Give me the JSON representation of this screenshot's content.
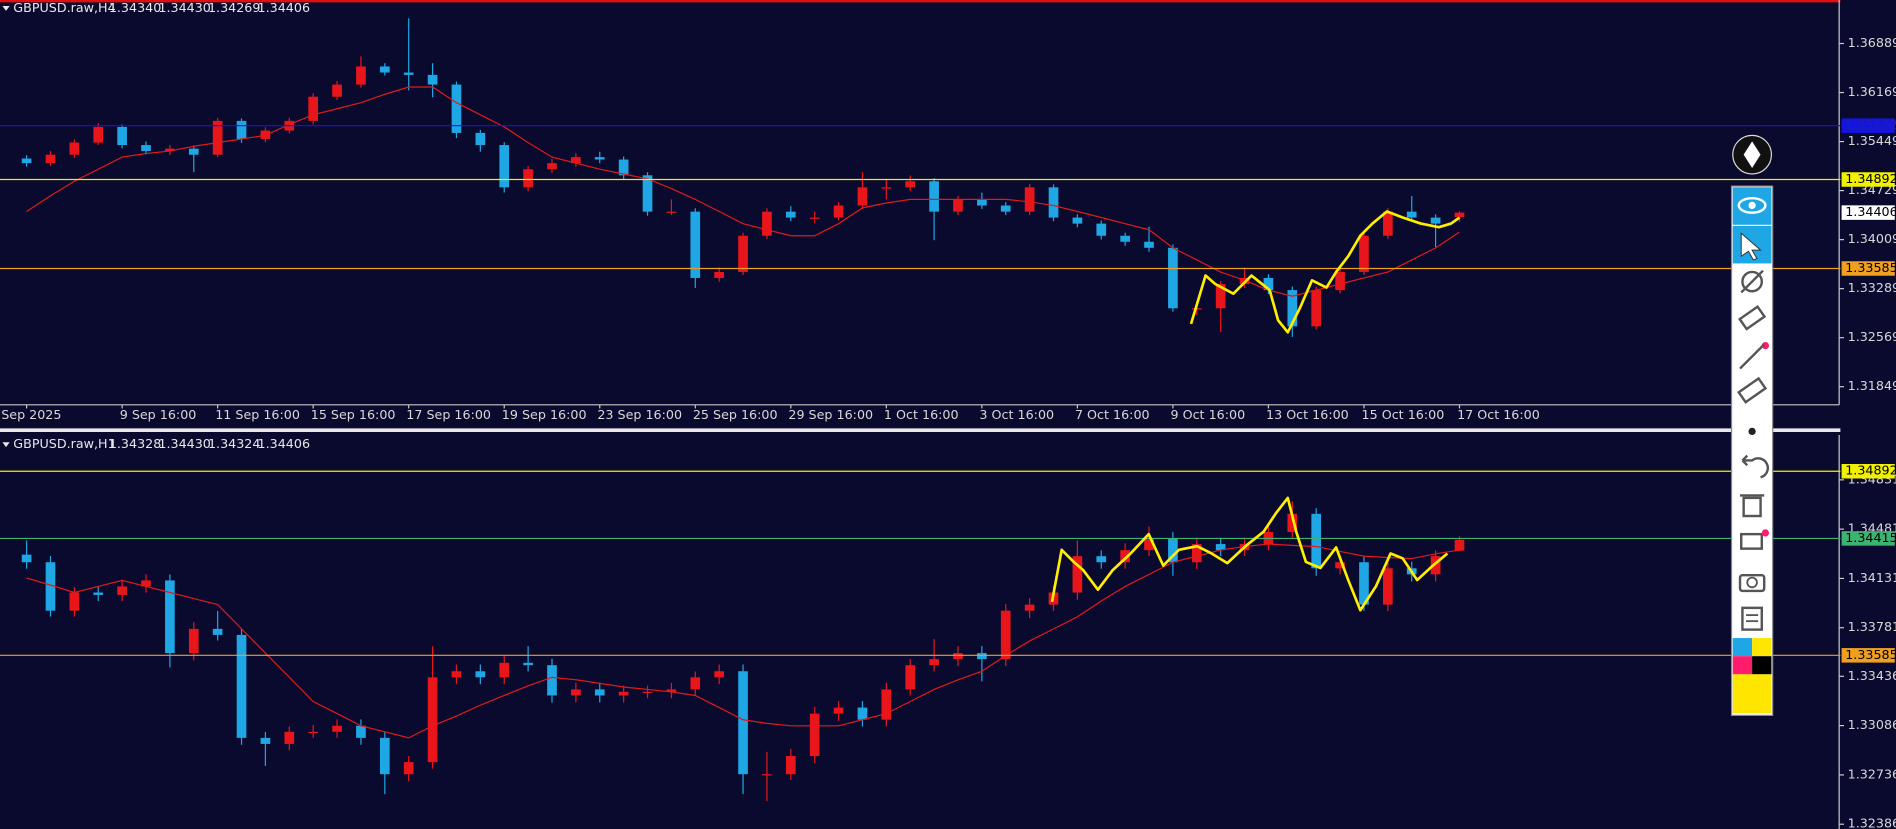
{
  "chart_data": [
    {
      "type": "candlestick",
      "title": "GBPUSD.raw,H4",
      "ohlc_labels": [
        "1.34340",
        "1.34430",
        "1.34269",
        "1.34406"
      ],
      "up_color": "#e8161a",
      "down_color": "#1ea7e4",
      "ma_color": "#e01a1a",
      "ylim": [
        1.31583,
        1.37528
      ],
      "yticks": [
        1.31849,
        1.32569,
        1.33289,
        1.34009,
        1.34729,
        1.35449,
        1.36169,
        1.36889
      ],
      "categories": [
        "Sep 2025",
        null,
        null,
        null,
        "9 Sep 16:00",
        null,
        null,
        null,
        "11 Sep 16:00",
        null,
        null,
        null,
        "15 Sep 16:00",
        null,
        null,
        null,
        "17 Sep 16:00",
        null,
        null,
        null,
        "19 Sep 16:00",
        null,
        null,
        null,
        "23 Sep 16:00",
        null,
        null,
        null,
        "25 Sep 16:00",
        null,
        null,
        null,
        "29 Sep 16:00",
        null,
        null,
        null,
        "1 Oct 16:00",
        null,
        null,
        null,
        "3 Oct 16:00",
        null,
        null,
        null,
        "7 Oct 16:00",
        null,
        null,
        null,
        "9 Oct 16:00",
        null,
        null,
        null,
        "13 Oct 16:00",
        null,
        null,
        null,
        "15 Oct 16:00",
        null,
        null,
        null,
        "17 Oct 16:00"
      ],
      "open": [
        1.352,
        1.35132,
        1.35256,
        1.35434,
        1.35664,
        1.35398,
        1.35309,
        1.35345,
        1.35256,
        1.35753,
        1.35487,
        1.35611,
        1.35753,
        1.36108,
        1.36286,
        1.36552,
        1.36463,
        1.36428,
        1.36286,
        1.35576,
        1.35398,
        1.34777,
        1.35043,
        1.35132,
        1.35221,
        1.35185,
        1.34954,
        1.3442,
        1.3442,
        1.33446,
        1.33534,
        1.34066,
        1.3442,
        1.34333,
        1.34333,
        1.3451,
        1.34777,
        1.34777,
        1.34866,
        1.3442,
        1.34599,
        1.3451,
        1.3442,
        1.34777,
        1.34333,
        1.34244,
        1.34066,
        1.33978,
        1.33889,
        1.33001,
        1.33001,
        1.33357,
        1.33446,
        1.33268,
        1.32736,
        1.33268,
        1.33534,
        1.34066,
        1.3442,
        1.34333,
        1.3434
      ],
      "high": [
        1.3525,
        1.3531,
        1.3548,
        1.3572,
        1.357,
        1.3545,
        1.354,
        1.3539,
        1.358,
        1.3579,
        1.3566,
        1.358,
        1.3616,
        1.3634,
        1.367,
        1.366,
        1.3726,
        1.366,
        1.3633,
        1.3562,
        1.3544,
        1.3509,
        1.352,
        1.3528,
        1.353,
        1.3523,
        1.35,
        1.346,
        1.3447,
        1.336,
        1.3411,
        1.3447,
        1.345,
        1.3442,
        1.3456,
        1.35,
        1.349,
        1.3495,
        1.3491,
        1.3465,
        1.347,
        1.3456,
        1.3483,
        1.3482,
        1.3438,
        1.3429,
        1.3411,
        1.342,
        1.3394,
        1.331,
        1.334,
        1.336,
        1.335,
        1.3332,
        1.3332,
        1.3358,
        1.3411,
        1.3447,
        1.3465,
        1.3438,
        1.3443
      ],
      "low": [
        1.3508,
        1.3509,
        1.3521,
        1.354,
        1.3535,
        1.3526,
        1.3525,
        1.35,
        1.3522,
        1.3543,
        1.3544,
        1.3557,
        1.357,
        1.3606,
        1.3624,
        1.3642,
        1.362,
        1.361,
        1.355,
        1.353,
        1.347,
        1.3472,
        1.3499,
        1.3508,
        1.3513,
        1.349,
        1.3436,
        1.3437,
        1.333,
        1.3339,
        1.3349,
        1.3402,
        1.3428,
        1.3425,
        1.3429,
        1.3446,
        1.346,
        1.3472,
        1.34,
        1.3437,
        1.3446,
        1.3437,
        1.3437,
        1.3428,
        1.3419,
        1.3401,
        1.3392,
        1.3383,
        1.3295,
        1.329,
        1.3265,
        1.333,
        1.3321,
        1.3258,
        1.3269,
        1.3322,
        1.3349,
        1.3402,
        1.3428,
        1.339,
        1.34269
      ],
      "close": [
        1.35132,
        1.35256,
        1.35434,
        1.35664,
        1.35398,
        1.35309,
        1.35345,
        1.35256,
        1.35753,
        1.35487,
        1.35611,
        1.35753,
        1.36108,
        1.36286,
        1.36552,
        1.36463,
        1.36428,
        1.36286,
        1.35576,
        1.35398,
        1.34777,
        1.35043,
        1.35132,
        1.35221,
        1.35185,
        1.34954,
        1.3442,
        1.3442,
        1.33446,
        1.33534,
        1.34066,
        1.3442,
        1.34333,
        1.34333,
        1.3451,
        1.34777,
        1.34777,
        1.34866,
        1.3442,
        1.34599,
        1.3451,
        1.3442,
        1.34777,
        1.34333,
        1.34244,
        1.34066,
        1.33978,
        1.33889,
        1.33001,
        1.33001,
        1.33357,
        1.33446,
        1.33268,
        1.32736,
        1.33268,
        1.33534,
        1.34066,
        1.3442,
        1.34333,
        1.34244,
        1.34406
      ],
      "ma": [
        1.34422,
        1.34653,
        1.34866,
        1.35043,
        1.35221,
        1.35274,
        1.35309,
        1.3538,
        1.35434,
        1.35487,
        1.3554,
        1.357,
        1.35842,
        1.35931,
        1.36019,
        1.36144,
        1.3625,
        1.3625,
        1.36019,
        1.35842,
        1.35664,
        1.35434,
        1.35221,
        1.35132,
        1.35043,
        1.34972,
        1.34901,
        1.34759,
        1.34599,
        1.34422,
        1.34244,
        1.34155,
        1.34066,
        1.34066,
        1.34244,
        1.34475,
        1.34546,
        1.34599,
        1.34599,
        1.34599,
        1.34599,
        1.34599,
        1.34564,
        1.3451,
        1.34422,
        1.34333,
        1.34244,
        1.34155,
        1.33889,
        1.33711,
        1.33534,
        1.3341,
        1.33268,
        1.33179,
        1.33268,
        1.33357,
        1.33446,
        1.33534,
        1.33711,
        1.33889,
        1.3412
      ],
      "lines": [
        {
          "value": 1.35682,
          "color": "#1414e0",
          "box": "#1414e0",
          "text_color": "#2020a8"
        },
        {
          "value": 1.34892,
          "color": "#f0f000",
          "box": "#f0f000",
          "text_color": "#000000"
        },
        {
          "value": 1.34406,
          "line": false,
          "box": "#ffffff",
          "text_color": "#000000"
        },
        {
          "value": 1.33585,
          "color": "#f0a020",
          "box": "#f0a020",
          "text_color": "#000000"
        }
      ]
    },
    {
      "type": "candlestick",
      "title": "GBPUSD.raw,H1",
      "ohlc_labels": [
        "1.34328",
        "1.34430",
        "1.34324",
        "1.34406"
      ],
      "up_color": "#e8161a",
      "down_color": "#1ea7e4",
      "ma_color": "#e01a1a",
      "ylim": [
        1.32352,
        1.35149
      ],
      "yticks": [
        1.32386,
        1.32736,
        1.33086,
        1.33436,
        1.33781,
        1.34131,
        1.34481,
        1.34831
      ],
      "open": [
        1.343,
        1.34246,
        1.33902,
        1.34031,
        1.34014,
        1.34074,
        1.34117,
        1.33601,
        1.33773,
        1.3373,
        1.32999,
        1.32956,
        1.33042,
        1.33042,
        1.33085,
        1.32999,
        1.32741,
        1.32827,
        1.33429,
        1.33472,
        1.33429,
        1.33532,
        1.33515,
        1.333,
        1.33343,
        1.333,
        1.33326,
        1.33326,
        1.33343,
        1.33429,
        1.33472,
        1.32741,
        1.32741,
        1.3287,
        1.33171,
        1.33214,
        1.33128,
        1.33343,
        1.33515,
        1.33558,
        1.33601,
        1.33558,
        1.33902,
        1.33945,
        1.34031,
        1.34289,
        1.34246,
        1.34332,
        1.34418,
        1.34246,
        1.34375,
        1.34332,
        1.34375,
        1.34461,
        1.3459,
        1.34203,
        1.34246,
        1.33945,
        1.34203,
        1.3416,
        1.34328
      ],
      "high": [
        1.344,
        1.3429,
        1.3407,
        1.3407,
        1.3412,
        1.3416,
        1.3416,
        1.3382,
        1.339,
        1.3377,
        1.3304,
        1.3308,
        1.3309,
        1.3313,
        1.3313,
        1.3304,
        1.3287,
        1.3365,
        1.3352,
        1.3352,
        1.3358,
        1.3365,
        1.3356,
        1.3339,
        1.3339,
        1.3337,
        1.3337,
        1.3339,
        1.3347,
        1.3352,
        1.3352,
        1.329,
        1.3292,
        1.3322,
        1.3326,
        1.3326,
        1.3339,
        1.3356,
        1.337,
        1.3365,
        1.3365,
        1.3395,
        1.3399,
        1.3408,
        1.344,
        1.3433,
        1.3438,
        1.345,
        1.3446,
        1.3442,
        1.3442,
        1.3442,
        1.3451,
        1.3468,
        1.3463,
        1.3429,
        1.3429,
        1.3425,
        1.3425,
        1.3433,
        1.3443
      ],
      "low": [
        1.342,
        1.3386,
        1.3386,
        1.3397,
        1.3397,
        1.3403,
        1.335,
        1.3355,
        1.3369,
        1.3295,
        1.328,
        1.3291,
        1.33,
        1.33,
        1.3295,
        1.326,
        1.3269,
        1.3278,
        1.3338,
        1.3338,
        1.3338,
        1.3347,
        1.3325,
        1.3325,
        1.3325,
        1.3325,
        1.3328,
        1.3328,
        1.333,
        1.3338,
        1.326,
        1.3255,
        1.327,
        1.3282,
        1.3312,
        1.3308,
        1.3308,
        1.333,
        1.3347,
        1.3351,
        1.334,
        1.3351,
        1.3385,
        1.339,
        1.3398,
        1.342,
        1.342,
        1.3429,
        1.3415,
        1.342,
        1.3429,
        1.3429,
        1.3433,
        1.3442,
        1.3415,
        1.3416,
        1.339,
        1.339,
        1.3411,
        1.3411,
        1.34324
      ],
      "close": [
        1.34246,
        1.33902,
        1.34031,
        1.34014,
        1.34074,
        1.34117,
        1.33601,
        1.33773,
        1.3373,
        1.32999,
        1.32956,
        1.33042,
        1.33042,
        1.33085,
        1.32999,
        1.32741,
        1.32827,
        1.33429,
        1.33472,
        1.33429,
        1.33532,
        1.33515,
        1.333,
        1.33343,
        1.333,
        1.33326,
        1.33326,
        1.33343,
        1.33429,
        1.33472,
        1.32741,
        1.32741,
        1.3287,
        1.33171,
        1.33214,
        1.33128,
        1.33343,
        1.33515,
        1.33558,
        1.33601,
        1.33558,
        1.33902,
        1.33945,
        1.34031,
        1.34289,
        1.34246,
        1.34332,
        1.34418,
        1.34246,
        1.34375,
        1.34332,
        1.34375,
        1.34461,
        1.3459,
        1.34203,
        1.34246,
        1.33945,
        1.34203,
        1.3416,
        1.34289,
        1.34406
      ],
      "ma": [
        1.34134,
        1.34083,
        1.34031,
        1.34074,
        1.34117,
        1.34074,
        1.34031,
        1.33988,
        1.33945,
        1.33773,
        1.33601,
        1.33429,
        1.33257,
        1.33171,
        1.33085,
        1.33042,
        1.32999,
        1.33085,
        1.33154,
        1.33231,
        1.333,
        1.33369,
        1.33429,
        1.33412,
        1.33386,
        1.3336,
        1.33343,
        1.33326,
        1.333,
        1.33214,
        1.33128,
        1.33102,
        1.33085,
        1.33085,
        1.33085,
        1.33128,
        1.33171,
        1.33257,
        1.33343,
        1.33412,
        1.33472,
        1.33584,
        1.33687,
        1.33773,
        1.33859,
        1.33971,
        1.34074,
        1.3416,
        1.34246,
        1.34289,
        1.34332,
        1.34358,
        1.34375,
        1.34366,
        1.34358,
        1.34323,
        1.34289,
        1.3428,
        1.34272,
        1.34306,
        1.34332
      ],
      "lines": [
        {
          "value": 1.34892,
          "color": "#f0f000",
          "box": "#f0f000",
          "text_color": "#000000"
        },
        {
          "value": 1.34415,
          "color": "#3cb371",
          "box": "#3cb371",
          "text_color": "#000000"
        },
        {
          "value": 1.33585,
          "color": "#f0a020",
          "box": "#f0a020",
          "text_color": "#000000"
        }
      ]
    }
  ]
}
